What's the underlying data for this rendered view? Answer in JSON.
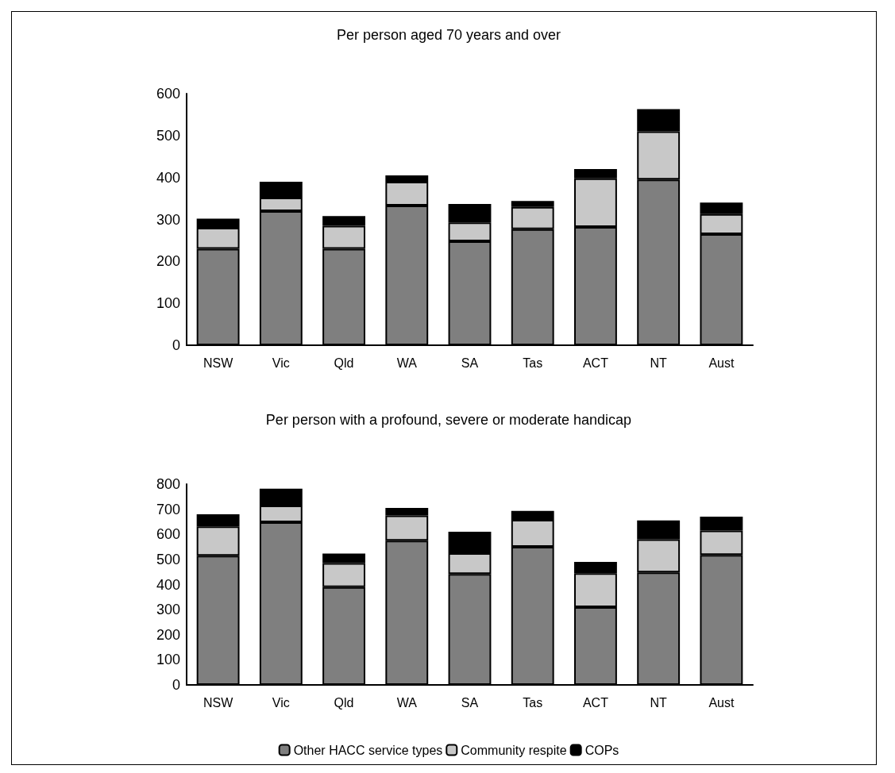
{
  "chart_data": [
    {
      "type": "bar",
      "title": "Per person aged 70 years and over",
      "categories": [
        "NSW",
        "Vic",
        "Qld",
        "WA",
        "SA",
        "Tas",
        "ACT",
        "NT",
        "Aust"
      ],
      "stacked": true,
      "ylim": [
        0,
        600
      ],
      "yticks": [
        0,
        100,
        200,
        300,
        400,
        500,
        600
      ],
      "grid": false,
      "legend": false,
      "series": [
        {
          "color": "#7f7f7f",
          "values": [
            230,
            320,
            230,
            333,
            248,
            277,
            282,
            395,
            265
          ]
        },
        {
          "color": "#c8c8c8",
          "values": [
            50,
            32,
            55,
            57,
            45,
            53,
            116,
            115,
            48
          ]
        },
        {
          "color": "#000000",
          "values": [
            22,
            38,
            23,
            15,
            44,
            14,
            22,
            53,
            27
          ]
        }
      ]
    },
    {
      "type": "bar",
      "title": "Per person with a profound, severe or moderate handicap",
      "categories": [
        "NSW",
        "Vic",
        "Qld",
        "WA",
        "SA",
        "Tas",
        "ACT",
        "NT",
        "Aust"
      ],
      "stacked": true,
      "ylim": [
        0,
        800
      ],
      "yticks": [
        0,
        100,
        200,
        300,
        400,
        500,
        600,
        700,
        800
      ],
      "grid": false,
      "legend": "bottom",
      "series": [
        {
          "name": "Other HACC service types",
          "color": "#7f7f7f",
          "values": [
            515,
            648,
            390,
            575,
            442,
            550,
            310,
            448,
            518
          ]
        },
        {
          "name": "Community respite",
          "color": "#c8c8c8",
          "values": [
            117,
            67,
            95,
            100,
            83,
            108,
            135,
            132,
            97
          ]
        },
        {
          "name": "COPs",
          "color": "#000000",
          "values": [
            48,
            67,
            38,
            30,
            85,
            35,
            45,
            75,
            55
          ]
        }
      ]
    }
  ]
}
